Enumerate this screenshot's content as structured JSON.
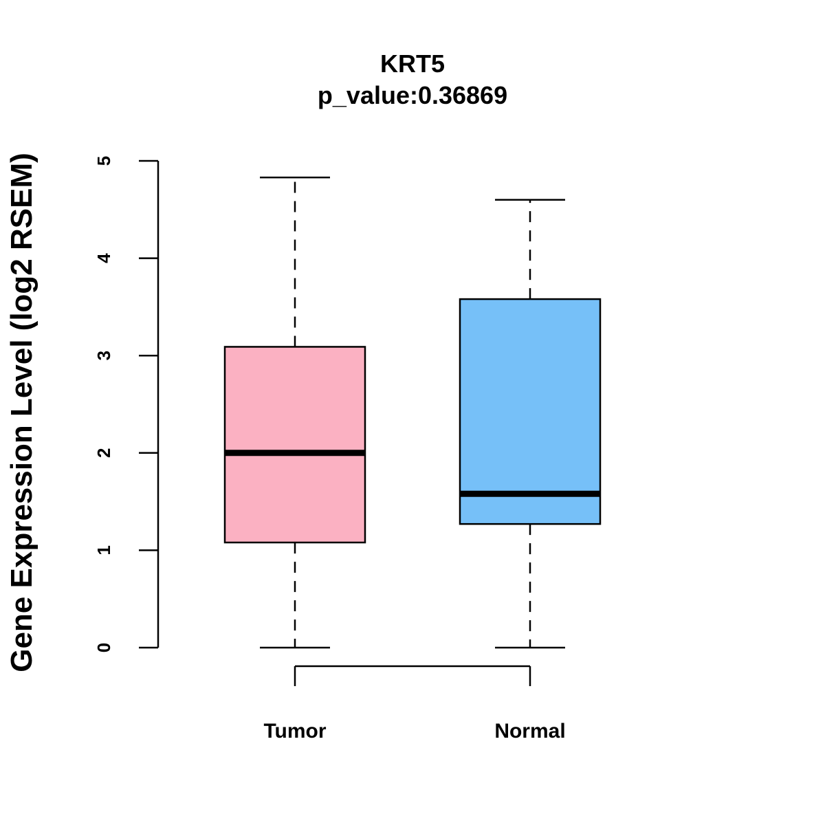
{
  "chart_data": {
    "type": "boxplot",
    "title": "KRT5",
    "subtitle": "p_value:0.36869",
    "xlabel": "",
    "ylabel": "Gene Expression Level (log2 RSEM)",
    "ylim": [
      0,
      5
    ],
    "yticks": [
      0,
      1,
      2,
      3,
      4,
      5
    ],
    "grid": false,
    "categories": [
      "Tumor",
      "Normal"
    ],
    "boxes": [
      {
        "name": "Tumor",
        "min": 0,
        "q1": 1.08,
        "median": 2.0,
        "q3": 3.09,
        "max": 4.83,
        "color": "#FBB1C2"
      },
      {
        "name": "Normal",
        "min": 0,
        "q1": 1.27,
        "median": 1.58,
        "q3": 3.58,
        "max": 4.6,
        "color": "#76C0F8"
      }
    ],
    "comparison_bracket": [
      "Tumor",
      "Normal"
    ]
  }
}
